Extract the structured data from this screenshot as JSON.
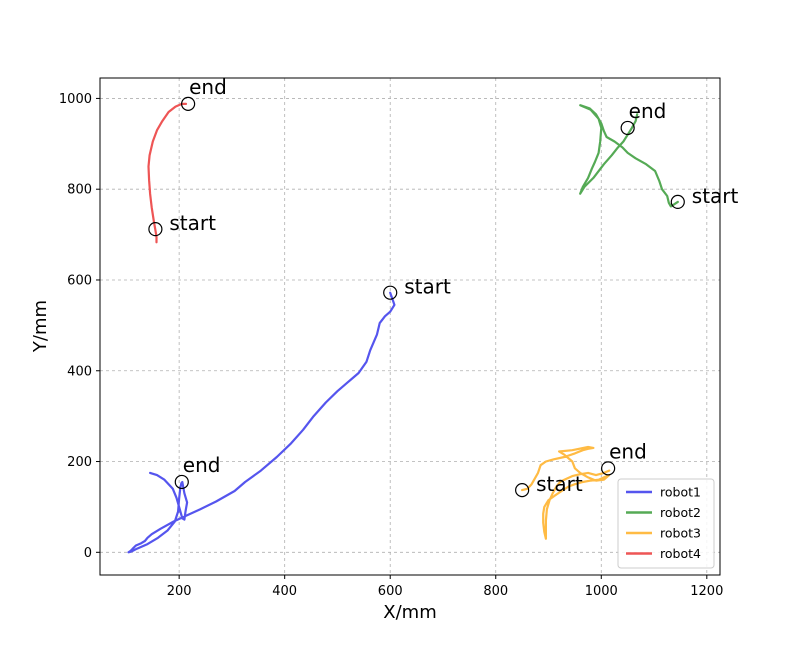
{
  "chart_data": {
    "type": "line",
    "title": "",
    "xlabel": "X/mm",
    "ylabel": "Y/mm",
    "xlim": [
      50,
      1225
    ],
    "ylim": [
      -50,
      1045
    ],
    "xticks": [
      200,
      400,
      600,
      800,
      1000,
      1200
    ],
    "yticks": [
      0,
      200,
      400,
      600,
      800,
      1000
    ],
    "grid": true,
    "legend": "bottom-right",
    "series": [
      {
        "name": "robot1",
        "color": "#5555ee",
        "points": [
          [
            600,
            572
          ],
          [
            605,
            555
          ],
          [
            608,
            545
          ],
          [
            600,
            530
          ],
          [
            590,
            520
          ],
          [
            580,
            505
          ],
          [
            575,
            480
          ],
          [
            562,
            445
          ],
          [
            555,
            420
          ],
          [
            540,
            395
          ],
          [
            520,
            375
          ],
          [
            500,
            355
          ],
          [
            478,
            330
          ],
          [
            455,
            300
          ],
          [
            435,
            270
          ],
          [
            412,
            240
          ],
          [
            385,
            210
          ],
          [
            355,
            180
          ],
          [
            325,
            155
          ],
          [
            305,
            135
          ],
          [
            270,
            112
          ],
          [
            240,
            95
          ],
          [
            212,
            80
          ],
          [
            190,
            68
          ],
          [
            165,
            52
          ],
          [
            148,
            40
          ],
          [
            140,
            32
          ],
          [
            135,
            25
          ],
          [
            128,
            20
          ],
          [
            118,
            15
          ],
          [
            112,
            8
          ],
          [
            108,
            3
          ],
          [
            104,
            0
          ],
          [
            110,
            2
          ],
          [
            120,
            8
          ],
          [
            140,
            18
          ],
          [
            160,
            32
          ],
          [
            178,
            48
          ],
          [
            192,
            68
          ],
          [
            198,
            90
          ],
          [
            200,
            118
          ],
          [
            202,
            140
          ],
          [
            204,
            152
          ],
          [
            206,
            155
          ],
          [
            210,
            130
          ],
          [
            215,
            110
          ],
          [
            212,
            90
          ],
          [
            210,
            72
          ],
          [
            206,
            75
          ],
          [
            200,
            100
          ],
          [
            195,
            120
          ],
          [
            188,
            140
          ],
          [
            172,
            160
          ],
          [
            158,
            170
          ],
          [
            145,
            175
          ]
        ]
      },
      {
        "name": "robot2",
        "color": "#55aa55",
        "points": [
          [
            1145,
            772
          ],
          [
            1132,
            762
          ],
          [
            1128,
            770
          ],
          [
            1125,
            785
          ],
          [
            1115,
            800
          ],
          [
            1110,
            818
          ],
          [
            1102,
            840
          ],
          [
            1085,
            855
          ],
          [
            1065,
            868
          ],
          [
            1050,
            880
          ],
          [
            1040,
            892
          ],
          [
            1025,
            905
          ],
          [
            1010,
            915
          ],
          [
            1005,
            928
          ],
          [
            1000,
            945
          ],
          [
            990,
            965
          ],
          [
            978,
            978
          ],
          [
            960,
            985
          ],
          [
            980,
            975
          ],
          [
            995,
            955
          ],
          [
            1000,
            935
          ],
          [
            998,
            905
          ],
          [
            995,
            880
          ],
          [
            988,
            860
          ],
          [
            982,
            845
          ],
          [
            975,
            825
          ],
          [
            965,
            805
          ],
          [
            960,
            790
          ],
          [
            968,
            805
          ],
          [
            985,
            825
          ],
          [
            1005,
            855
          ],
          [
            1020,
            875
          ],
          [
            1030,
            890
          ],
          [
            1042,
            905
          ],
          [
            1050,
            920
          ],
          [
            1058,
            935
          ],
          [
            1065,
            950
          ],
          [
            1068,
            965
          ]
        ]
      },
      {
        "name": "robot3",
        "color": "#ffbb44",
        "points": [
          [
            850,
            137
          ],
          [
            860,
            140
          ],
          [
            868,
            150
          ],
          [
            880,
            175
          ],
          [
            885,
            192
          ],
          [
            895,
            200
          ],
          [
            910,
            205
          ],
          [
            930,
            210
          ],
          [
            950,
            218
          ],
          [
            965,
            225
          ],
          [
            975,
            228
          ],
          [
            985,
            230
          ],
          [
            975,
            232
          ],
          [
            945,
            225
          ],
          [
            920,
            222
          ],
          [
            930,
            215
          ],
          [
            945,
            200
          ],
          [
            950,
            185
          ],
          [
            960,
            175
          ],
          [
            975,
            165
          ],
          [
            990,
            158
          ],
          [
            1005,
            160
          ],
          [
            1015,
            170
          ],
          [
            1010,
            168
          ],
          [
            995,
            160
          ],
          [
            980,
            158
          ],
          [
            965,
            155
          ],
          [
            950,
            150
          ],
          [
            938,
            145
          ],
          [
            925,
            135
          ],
          [
            912,
            125
          ],
          [
            900,
            115
          ],
          [
            892,
            100
          ],
          [
            890,
            85
          ],
          [
            890,
            65
          ],
          [
            892,
            45
          ],
          [
            895,
            30
          ],
          [
            895,
            45
          ],
          [
            895,
            70
          ],
          [
            897,
            95
          ],
          [
            902,
            115
          ],
          [
            908,
            130
          ],
          [
            915,
            145
          ],
          [
            922,
            155
          ],
          [
            930,
            160
          ],
          [
            945,
            168
          ],
          [
            960,
            172
          ],
          [
            975,
            175
          ],
          [
            990,
            170
          ],
          [
            1005,
            175
          ],
          [
            1015,
            180
          ]
        ]
      },
      {
        "name": "robot4",
        "color": "#ee5555",
        "points": [
          [
            157,
            683
          ],
          [
            157,
            695
          ],
          [
            155,
            710
          ],
          [
            152,
            730
          ],
          [
            148,
            760
          ],
          [
            145,
            790
          ],
          [
            143,
            820
          ],
          [
            142,
            850
          ],
          [
            144,
            875
          ],
          [
            150,
            905
          ],
          [
            158,
            930
          ],
          [
            168,
            950
          ],
          [
            180,
            970
          ],
          [
            193,
            982
          ],
          [
            205,
            988
          ],
          [
            213,
            988
          ]
        ]
      }
    ],
    "annotations": [
      {
        "text": "start",
        "series": "robot1",
        "x": 600,
        "y": 572
      },
      {
        "text": "end",
        "series": "robot1",
        "x": 205,
        "y": 155
      },
      {
        "text": "start",
        "series": "robot2",
        "x": 1145,
        "y": 772
      },
      {
        "text": "end",
        "series": "robot2",
        "x": 1050,
        "y": 935
      },
      {
        "text": "start",
        "series": "robot3",
        "x": 850,
        "y": 137
      },
      {
        "text": "end",
        "series": "robot3",
        "x": 1013,
        "y": 185
      },
      {
        "text": "start",
        "series": "robot4",
        "x": 155,
        "y": 712
      },
      {
        "text": "end",
        "series": "robot4",
        "x": 217,
        "y": 988
      }
    ]
  }
}
